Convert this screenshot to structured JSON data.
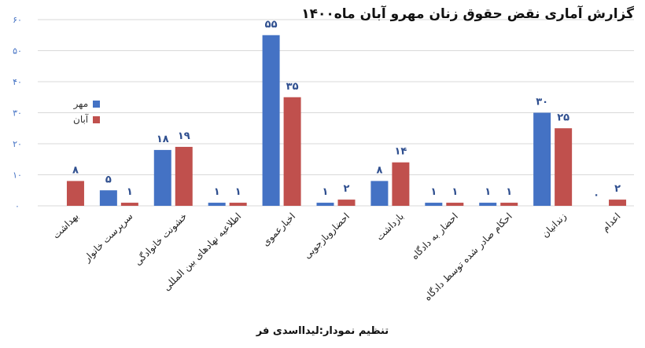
{
  "header": {
    "title": "گزارش آماری نقض حقوق زنان مهرو آبان ماه۱۴۰۰"
  },
  "footer": {
    "credit": "تنظیم نمودار:لیدااسدی فر"
  },
  "chart_data": {
    "type": "bar",
    "title": "گزارش آماری نقض حقوق زنان مهرو آبان ماه۱۴۰۰",
    "xlabel": "",
    "ylabel": "",
    "ylim": [
      0,
      60
    ],
    "yticks": [
      0,
      10,
      20,
      30,
      40,
      50,
      60
    ],
    "ytick_labels": [
      "۰",
      "۱۰",
      "۲۰",
      "۳۰",
      "۴۰",
      "۵۰",
      "۶۰"
    ],
    "grid": true,
    "legend_position": "left",
    "categories": [
      "بهداشت",
      "سرپرست خانوار",
      "خشونت خانوادگی",
      "اطلاعیه نهادهای بین المللی",
      "اخبارعموی",
      "احضاروبازجویی",
      "بازداشت",
      "احضار به دادگاه",
      "احکام صادر شده توسط دادگاه",
      "زندانیان",
      "اعدام"
    ],
    "series": [
      {
        "name": "مهر",
        "color": "#4472c4",
        "values": [
          null,
          5,
          18,
          1,
          55,
          1,
          8,
          1,
          1,
          30,
          0
        ],
        "labels": [
          "",
          "۵",
          "۱۸",
          "۱",
          "۵۵",
          "۱",
          "۸",
          "۱",
          "۱",
          "۳۰",
          "۰"
        ]
      },
      {
        "name": "آبان",
        "color": "#c0504d",
        "values": [
          8,
          1,
          19,
          1,
          35,
          2,
          14,
          1,
          1,
          25,
          2
        ],
        "labels": [
          "۸",
          "۱",
          "۱۹",
          "۱",
          "۳۵",
          "۲",
          "۱۴",
          "۱",
          "۱",
          "۲۵",
          "۲"
        ]
      }
    ]
  }
}
